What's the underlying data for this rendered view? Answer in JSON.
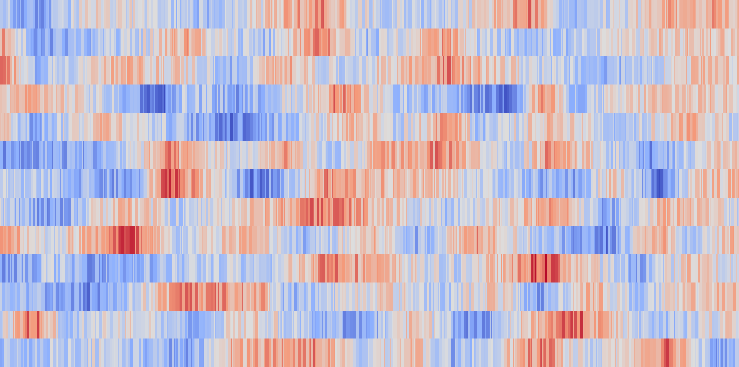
{
  "chart_data": {
    "type": "heatmap",
    "title": "",
    "xlabel": "",
    "ylabel": "",
    "colormap": "coolwarm",
    "value_range": [
      -1,
      1
    ],
    "grid": false,
    "legend": "none",
    "axes_visible": false,
    "rows": 13,
    "columns": 930,
    "row_profiles": [
      [
        [
          0,
          -0.25
        ],
        [
          40,
          -0.6
        ],
        [
          120,
          0.05
        ],
        [
          260,
          -0.35
        ],
        [
          405,
          0.55
        ],
        [
          460,
          -0.1
        ],
        [
          560,
          -0.2
        ],
        [
          665,
          0.5
        ],
        [
          720,
          -0.45
        ],
        [
          850,
          0.35
        ],
        [
          930,
          0.35
        ]
      ],
      [
        [
          0,
          0.45
        ],
        [
          45,
          -0.55
        ],
        [
          180,
          -0.1
        ],
        [
          230,
          0.35
        ],
        [
          330,
          -0.4
        ],
        [
          400,
          0.65
        ],
        [
          460,
          -0.35
        ],
        [
          560,
          0.45
        ],
        [
          600,
          -0.2
        ],
        [
          720,
          -0.3
        ],
        [
          840,
          0.2
        ],
        [
          930,
          0.2
        ]
      ],
      [
        [
          0,
          0.7
        ],
        [
          40,
          -0.35
        ],
        [
          150,
          0.25
        ],
        [
          230,
          0.1
        ],
        [
          300,
          -0.45
        ],
        [
          350,
          0.4
        ],
        [
          420,
          -0.2
        ],
        [
          560,
          0.5
        ],
        [
          620,
          0.15
        ],
        [
          760,
          -0.45
        ],
        [
          880,
          0.2
        ],
        [
          930,
          0.1
        ]
      ],
      [
        [
          0,
          0.15
        ],
        [
          40,
          0.35
        ],
        [
          160,
          -0.35
        ],
        [
          200,
          -0.9
        ],
        [
          230,
          -0.2
        ],
        [
          300,
          -0.5
        ],
        [
          400,
          0.15
        ],
        [
          420,
          0.55
        ],
        [
          490,
          -0.2
        ],
        [
          560,
          -0.4
        ],
        [
          640,
          -0.75
        ],
        [
          680,
          0.55
        ],
        [
          720,
          -0.35
        ],
        [
          820,
          0.2
        ],
        [
          930,
          0.15
        ]
      ],
      [
        [
          0,
          0.2
        ],
        [
          40,
          -0.45
        ],
        [
          130,
          0.3
        ],
        [
          200,
          -0.2
        ],
        [
          290,
          -0.7
        ],
        [
          370,
          -0.25
        ],
        [
          450,
          0.35
        ],
        [
          500,
          -0.2
        ],
        [
          570,
          0.55
        ],
        [
          600,
          -0.3
        ],
        [
          700,
          0.25
        ],
        [
          780,
          -0.3
        ],
        [
          870,
          0.35
        ],
        [
          930,
          -0.2
        ]
      ],
      [
        [
          0,
          -0.65
        ],
        [
          50,
          -0.5
        ],
        [
          130,
          -0.45
        ],
        [
          210,
          0.45
        ],
        [
          300,
          -0.15
        ],
        [
          360,
          0.35
        ],
        [
          410,
          -0.35
        ],
        [
          480,
          0.3
        ],
        [
          560,
          0.5
        ],
        [
          650,
          -0.3
        ],
        [
          690,
          0.6
        ],
        [
          720,
          0.3
        ],
        [
          820,
          -0.6
        ],
        [
          930,
          0.3
        ]
      ],
      [
        [
          0,
          -0.2
        ],
        [
          80,
          -0.35
        ],
        [
          170,
          -0.6
        ],
        [
          210,
          0.85
        ],
        [
          230,
          0.55
        ],
        [
          320,
          -0.75
        ],
        [
          360,
          -0.3
        ],
        [
          410,
          0.45
        ],
        [
          470,
          0.3
        ],
        [
          560,
          0.15
        ],
        [
          620,
          -0.2
        ],
        [
          720,
          -0.55
        ],
        [
          770,
          0.2
        ],
        [
          830,
          -0.75
        ],
        [
          880,
          0.2
        ],
        [
          930,
          0.2
        ]
      ],
      [
        [
          0,
          -0.15
        ],
        [
          65,
          -0.65
        ],
        [
          150,
          0.35
        ],
        [
          230,
          -0.25
        ],
        [
          300,
          0.1
        ],
        [
          410,
          0.6
        ],
        [
          470,
          0.3
        ],
        [
          560,
          -0.25
        ],
        [
          710,
          0.45
        ],
        [
          760,
          -0.55
        ],
        [
          840,
          0.35
        ],
        [
          930,
          -0.1
        ]
      ],
      [
        [
          0,
          0.55
        ],
        [
          60,
          -0.1
        ],
        [
          160,
          0.75
        ],
        [
          220,
          -0.2
        ],
        [
          310,
          0.35
        ],
        [
          380,
          -0.4
        ],
        [
          470,
          0.25
        ],
        [
          520,
          -0.45
        ],
        [
          600,
          0.5
        ],
        [
          690,
          -0.35
        ],
        [
          760,
          -0.7
        ],
        [
          830,
          0.45
        ],
        [
          860,
          -0.4
        ],
        [
          930,
          0.35
        ]
      ],
      [
        [
          0,
          -0.7
        ],
        [
          60,
          -0.2
        ],
        [
          110,
          -0.5
        ],
        [
          200,
          -0.35
        ],
        [
          270,
          -0.15
        ],
        [
          330,
          -0.35
        ],
        [
          410,
          0.6
        ],
        [
          480,
          0.25
        ],
        [
          560,
          -0.2
        ],
        [
          650,
          0.35
        ],
        [
          680,
          0.8
        ],
        [
          720,
          0.3
        ],
        [
          800,
          -0.45
        ],
        [
          870,
          0.25
        ],
        [
          930,
          -0.1
        ]
      ],
      [
        [
          0,
          -0.2
        ],
        [
          60,
          -0.45
        ],
        [
          110,
          -0.65
        ],
        [
          160,
          -0.25
        ],
        [
          230,
          0.55
        ],
        [
          330,
          0.35
        ],
        [
          360,
          -0.4
        ],
        [
          480,
          0.15
        ],
        [
          560,
          -0.25
        ],
        [
          620,
          0.2
        ],
        [
          680,
          -0.55
        ],
        [
          740,
          0.4
        ],
        [
          800,
          -0.3
        ],
        [
          880,
          0.2
        ],
        [
          930,
          0.2
        ]
      ],
      [
        [
          0,
          -0.2
        ],
        [
          40,
          0.75
        ],
        [
          80,
          -0.25
        ],
        [
          170,
          0.1
        ],
        [
          240,
          -0.55
        ],
        [
          310,
          0.2
        ],
        [
          380,
          -0.25
        ],
        [
          460,
          -0.6
        ],
        [
          520,
          0.25
        ],
        [
          600,
          -0.75
        ],
        [
          660,
          0.2
        ],
        [
          720,
          0.7
        ],
        [
          760,
          0.25
        ],
        [
          830,
          -0.4
        ],
        [
          930,
          0.15
        ]
      ],
      [
        [
          0,
          -0.35
        ],
        [
          120,
          -0.1
        ],
        [
          240,
          -0.55
        ],
        [
          290,
          0.3
        ],
        [
          400,
          0.5
        ],
        [
          450,
          -0.2
        ],
        [
          520,
          0.3
        ],
        [
          570,
          -0.45
        ],
        [
          680,
          0.55
        ],
        [
          740,
          -0.2
        ],
        [
          840,
          0.65
        ],
        [
          900,
          -0.45
        ],
        [
          930,
          -0.45
        ]
      ]
    ]
  }
}
